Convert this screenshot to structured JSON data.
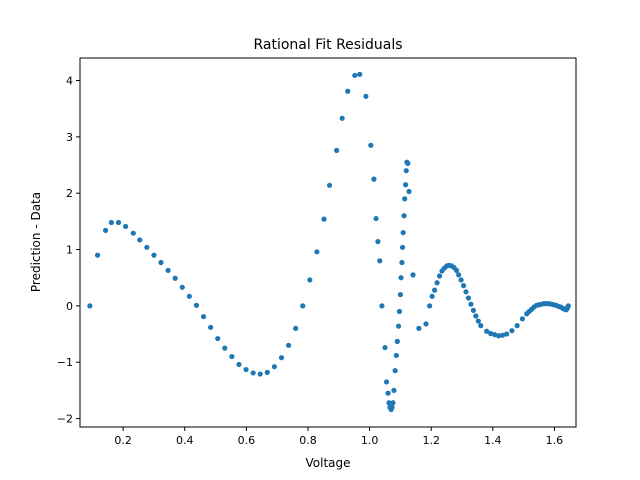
{
  "chart_data": {
    "type": "scatter",
    "title": "Rational Fit Residuals",
    "xlabel": "Voltage",
    "ylabel": "Prediction - Data",
    "xlim": [
      0.06,
      1.67
    ],
    "ylim": [
      -2.15,
      4.4
    ],
    "xticks": [
      0.2,
      0.4,
      0.6,
      0.8,
      1.0,
      1.2,
      1.4,
      1.6
    ],
    "xtick_labels": [
      "0.2",
      "0.4",
      "0.6",
      "0.8",
      "1.0",
      "1.2",
      "1.4",
      "1.6"
    ],
    "yticks": [
      -2,
      -1,
      0,
      1,
      2,
      3,
      4
    ],
    "ytick_labels": [
      "−2",
      "−1",
      "0",
      "1",
      "2",
      "3",
      "4"
    ],
    "grid": false,
    "legend": "none",
    "marker_color": "#1f77b4",
    "series": [
      {
        "points": [
          [
            0.092,
            0.0
          ],
          [
            0.117,
            0.9
          ],
          [
            0.143,
            1.34
          ],
          [
            0.162,
            1.48
          ],
          [
            0.185,
            1.48
          ],
          [
            0.208,
            1.41
          ],
          [
            0.233,
            1.29
          ],
          [
            0.254,
            1.17
          ],
          [
            0.277,
            1.04
          ],
          [
            0.3,
            0.9
          ],
          [
            0.323,
            0.77
          ],
          [
            0.346,
            0.63
          ],
          [
            0.369,
            0.49
          ],
          [
            0.392,
            0.33
          ],
          [
            0.415,
            0.17
          ],
          [
            0.438,
            0.01
          ],
          [
            0.461,
            -0.19
          ],
          [
            0.484,
            -0.38
          ],
          [
            0.507,
            -0.58
          ],
          [
            0.53,
            -0.75
          ],
          [
            0.553,
            -0.9
          ],
          [
            0.576,
            -1.04
          ],
          [
            0.599,
            -1.13
          ],
          [
            0.622,
            -1.19
          ],
          [
            0.645,
            -1.21
          ],
          [
            0.668,
            -1.18
          ],
          [
            0.691,
            -1.08
          ],
          [
            0.714,
            -0.92
          ],
          [
            0.737,
            -0.7
          ],
          [
            0.76,
            -0.4
          ],
          [
            0.783,
            0.0
          ],
          [
            0.806,
            0.46
          ],
          [
            0.829,
            0.96
          ],
          [
            0.852,
            1.54
          ],
          [
            0.87,
            2.14
          ],
          [
            0.893,
            2.76
          ],
          [
            0.911,
            3.33
          ],
          [
            0.929,
            3.81
          ],
          [
            0.952,
            4.09
          ],
          [
            0.968,
            4.11
          ],
          [
            0.988,
            3.72
          ],
          [
            1.004,
            2.85
          ],
          [
            1.014,
            2.25
          ],
          [
            1.021,
            1.55
          ],
          [
            1.027,
            1.14
          ],
          [
            1.033,
            0.8
          ],
          [
            1.04,
            0.0
          ],
          [
            1.05,
            -0.74
          ],
          [
            1.055,
            -1.35
          ],
          [
            1.06,
            -1.55
          ],
          [
            1.063,
            -1.72
          ],
          [
            1.066,
            -1.8
          ],
          [
            1.07,
            -1.84
          ],
          [
            1.073,
            -1.8
          ],
          [
            1.076,
            -1.72
          ],
          [
            1.079,
            -1.5
          ],
          [
            1.083,
            -1.15
          ],
          [
            1.087,
            -0.88
          ],
          [
            1.09,
            -0.63
          ],
          [
            1.094,
            -0.36
          ],
          [
            1.097,
            -0.1
          ],
          [
            1.1,
            0.2
          ],
          [
            1.102,
            0.5
          ],
          [
            1.105,
            0.77
          ],
          [
            1.107,
            1.04
          ],
          [
            1.109,
            1.3
          ],
          [
            1.112,
            1.6
          ],
          [
            1.114,
            1.9
          ],
          [
            1.117,
            2.15
          ],
          [
            1.119,
            2.4
          ],
          [
            1.121,
            2.55
          ],
          [
            1.124,
            2.53
          ],
          [
            1.128,
            2.03
          ],
          [
            1.141,
            0.55
          ],
          [
            1.16,
            -0.4
          ],
          [
            1.183,
            -0.32
          ],
          [
            1.195,
            0.0
          ],
          [
            1.203,
            0.17
          ],
          [
            1.211,
            0.28
          ],
          [
            1.219,
            0.41
          ],
          [
            1.227,
            0.53
          ],
          [
            1.235,
            0.62
          ],
          [
            1.243,
            0.67
          ],
          [
            1.251,
            0.71
          ],
          [
            1.258,
            0.72
          ],
          [
            1.266,
            0.71
          ],
          [
            1.274,
            0.68
          ],
          [
            1.282,
            0.63
          ],
          [
            1.289,
            0.55
          ],
          [
            1.297,
            0.46
          ],
          [
            1.305,
            0.36
          ],
          [
            1.313,
            0.25
          ],
          [
            1.321,
            0.14
          ],
          [
            1.329,
            0.03
          ],
          [
            1.337,
            -0.08
          ],
          [
            1.345,
            -0.18
          ],
          [
            1.353,
            -0.27
          ],
          [
            1.361,
            -0.35
          ],
          [
            1.38,
            -0.45
          ],
          [
            1.393,
            -0.49
          ],
          [
            1.406,
            -0.51
          ],
          [
            1.419,
            -0.53
          ],
          [
            1.432,
            -0.52
          ],
          [
            1.445,
            -0.5
          ],
          [
            1.462,
            -0.44
          ],
          [
            1.479,
            -0.35
          ],
          [
            1.496,
            -0.23
          ],
          [
            1.51,
            -0.14
          ],
          [
            1.518,
            -0.1
          ],
          [
            1.526,
            -0.06
          ],
          [
            1.534,
            -0.02
          ],
          [
            1.542,
            0.01
          ],
          [
            1.55,
            0.02
          ],
          [
            1.558,
            0.03
          ],
          [
            1.566,
            0.04
          ],
          [
            1.574,
            0.04
          ],
          [
            1.582,
            0.04
          ],
          [
            1.59,
            0.03
          ],
          [
            1.598,
            0.02
          ],
          [
            1.606,
            0.01
          ],
          [
            1.614,
            -0.01
          ],
          [
            1.62,
            -0.02
          ],
          [
            1.626,
            -0.04
          ],
          [
            1.63,
            -0.05
          ],
          [
            1.634,
            -0.06
          ],
          [
            1.638,
            -0.07
          ],
          [
            1.641,
            -0.05
          ],
          [
            1.643,
            -0.02
          ],
          [
            1.645,
            0.0
          ]
        ]
      }
    ]
  }
}
